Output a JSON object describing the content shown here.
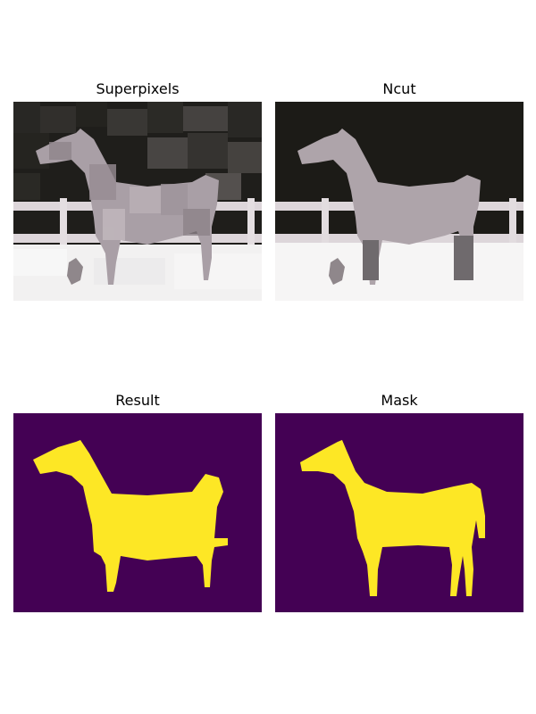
{
  "figure": {
    "panels": [
      {
        "title": "Superpixels"
      },
      {
        "title": "Ncut"
      },
      {
        "title": "Result"
      },
      {
        "title": "Mask"
      }
    ]
  },
  "colors": {
    "mask_background": "#440154",
    "mask_foreground": "#fde725",
    "scene_dark": "#1c1b17",
    "scene_snow": "#f4f3f3",
    "horse_gray": "#aea4aa",
    "fence_white": "#e2dcdf"
  }
}
